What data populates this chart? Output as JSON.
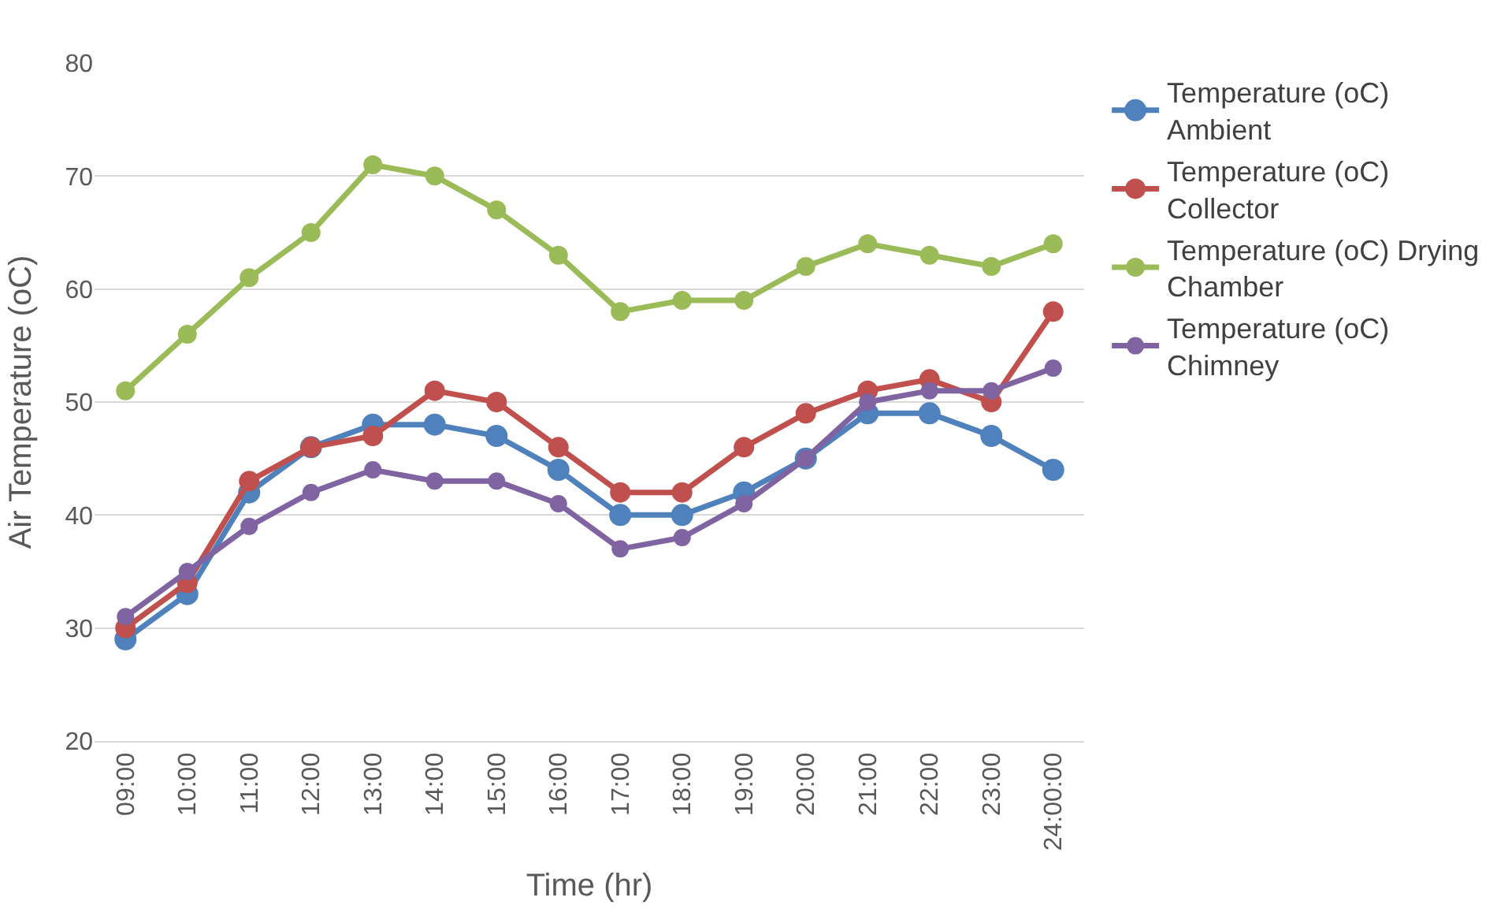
{
  "chart_data": {
    "type": "line",
    "xlabel": "Time (hr)",
    "ylabel": "Air Temperature (oC)",
    "categories": [
      "09:00",
      "10:00",
      "11:00",
      "12:00",
      "13:00",
      "14:00",
      "15:00",
      "16:00",
      "17:00",
      "18:00",
      "19:00",
      "20:00",
      "21:00",
      "22:00",
      "23:00",
      "24:00:00"
    ],
    "series": [
      {
        "name": "Temperature (oC) Ambient",
        "color": "#4f81bd",
        "values": [
          29,
          33,
          42,
          46,
          48,
          48,
          47,
          44,
          40,
          40,
          42,
          45,
          49,
          49,
          47,
          44
        ]
      },
      {
        "name": "Temperature (oC) Collector",
        "color": "#c0504d",
        "values": [
          30,
          34,
          43,
          46,
          47,
          51,
          50,
          46,
          42,
          42,
          46,
          49,
          51,
          52,
          50,
          58
        ]
      },
      {
        "name": "Temperature (oC) Drying Chamber",
        "color": "#9bbb59",
        "values": [
          51,
          56,
          61,
          65,
          71,
          70,
          67,
          63,
          58,
          59,
          59,
          62,
          64,
          63,
          62,
          64
        ]
      },
      {
        "name": "Temperature (oC) Chimney",
        "color": "#8064a2",
        "values": [
          31,
          35,
          39,
          42,
          44,
          43,
          43,
          41,
          37,
          38,
          41,
          45,
          50,
          51,
          51,
          53
        ]
      }
    ],
    "ylim": [
      20,
      80
    ],
    "yticks": [
      20,
      30,
      40,
      50,
      60,
      70,
      80
    ],
    "grid": "y",
    "legend": "right",
    "marker": "circle",
    "line_style": "solid"
  }
}
